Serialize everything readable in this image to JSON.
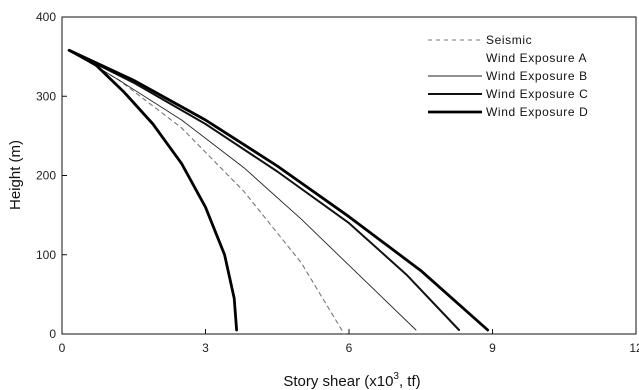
{
  "chart_data": {
    "type": "line",
    "title": "",
    "xlabel": "Story shear (x10",
    "xlabel_superscript": "3",
    "xlabel_suffix": ", tf)",
    "ylabel": "Height (m)",
    "xlim": [
      0,
      12
    ],
    "ylim": [
      0,
      400
    ],
    "xticks": [
      0,
      3,
      6,
      9,
      12
    ],
    "yticks": [
      0,
      100,
      200,
      300,
      400
    ],
    "xtick_labels": [
      "0",
      "3",
      "6",
      "9",
      "12"
    ],
    "ytick_labels": [
      "0",
      "100",
      "200",
      "300",
      "400"
    ],
    "grid": false,
    "legend_position": "top-right",
    "series": [
      {
        "name": "Seismic",
        "style": "dashed",
        "color": "#777777",
        "x": [
          0.15,
          1.2,
          2.5,
          3.8,
          5.0,
          5.9
        ],
        "y": [
          358,
          320,
          260,
          180,
          90,
          0
        ]
      },
      {
        "name": "Wind Exposure A",
        "style": "invisible",
        "color": "#000000",
        "x": [],
        "y": []
      },
      {
        "name": "Wind Exposure B",
        "style": "thin",
        "color": "#222222",
        "x": [
          0.15,
          1.2,
          2.5,
          3.8,
          5.0,
          6.2,
          7.4
        ],
        "y": [
          358,
          320,
          270,
          210,
          145,
          75,
          5
        ]
      },
      {
        "name": "Wind Exposure C",
        "style": "medium",
        "color": "#111111",
        "x": [
          0.15,
          1.5,
          3.0,
          4.5,
          6.0,
          7.2,
          8.3
        ],
        "y": [
          358,
          317,
          265,
          205,
          140,
          75,
          5
        ]
      },
      {
        "name": "Wind Exposure D",
        "style": "thick",
        "color": "#000000",
        "x": [
          0.15,
          1.5,
          3.0,
          4.5,
          6.0,
          7.5,
          8.9
        ],
        "y": [
          358,
          320,
          270,
          212,
          148,
          80,
          5
        ]
      },
      {
        "name": "",
        "style": "thick",
        "color": "#000000",
        "x": [
          0.15,
          0.7,
          1.3,
          1.9,
          2.5,
          3.0,
          3.4,
          3.6,
          3.65
        ],
        "y": [
          358,
          340,
          305,
          265,
          215,
          160,
          100,
          45,
          5
        ]
      }
    ]
  }
}
